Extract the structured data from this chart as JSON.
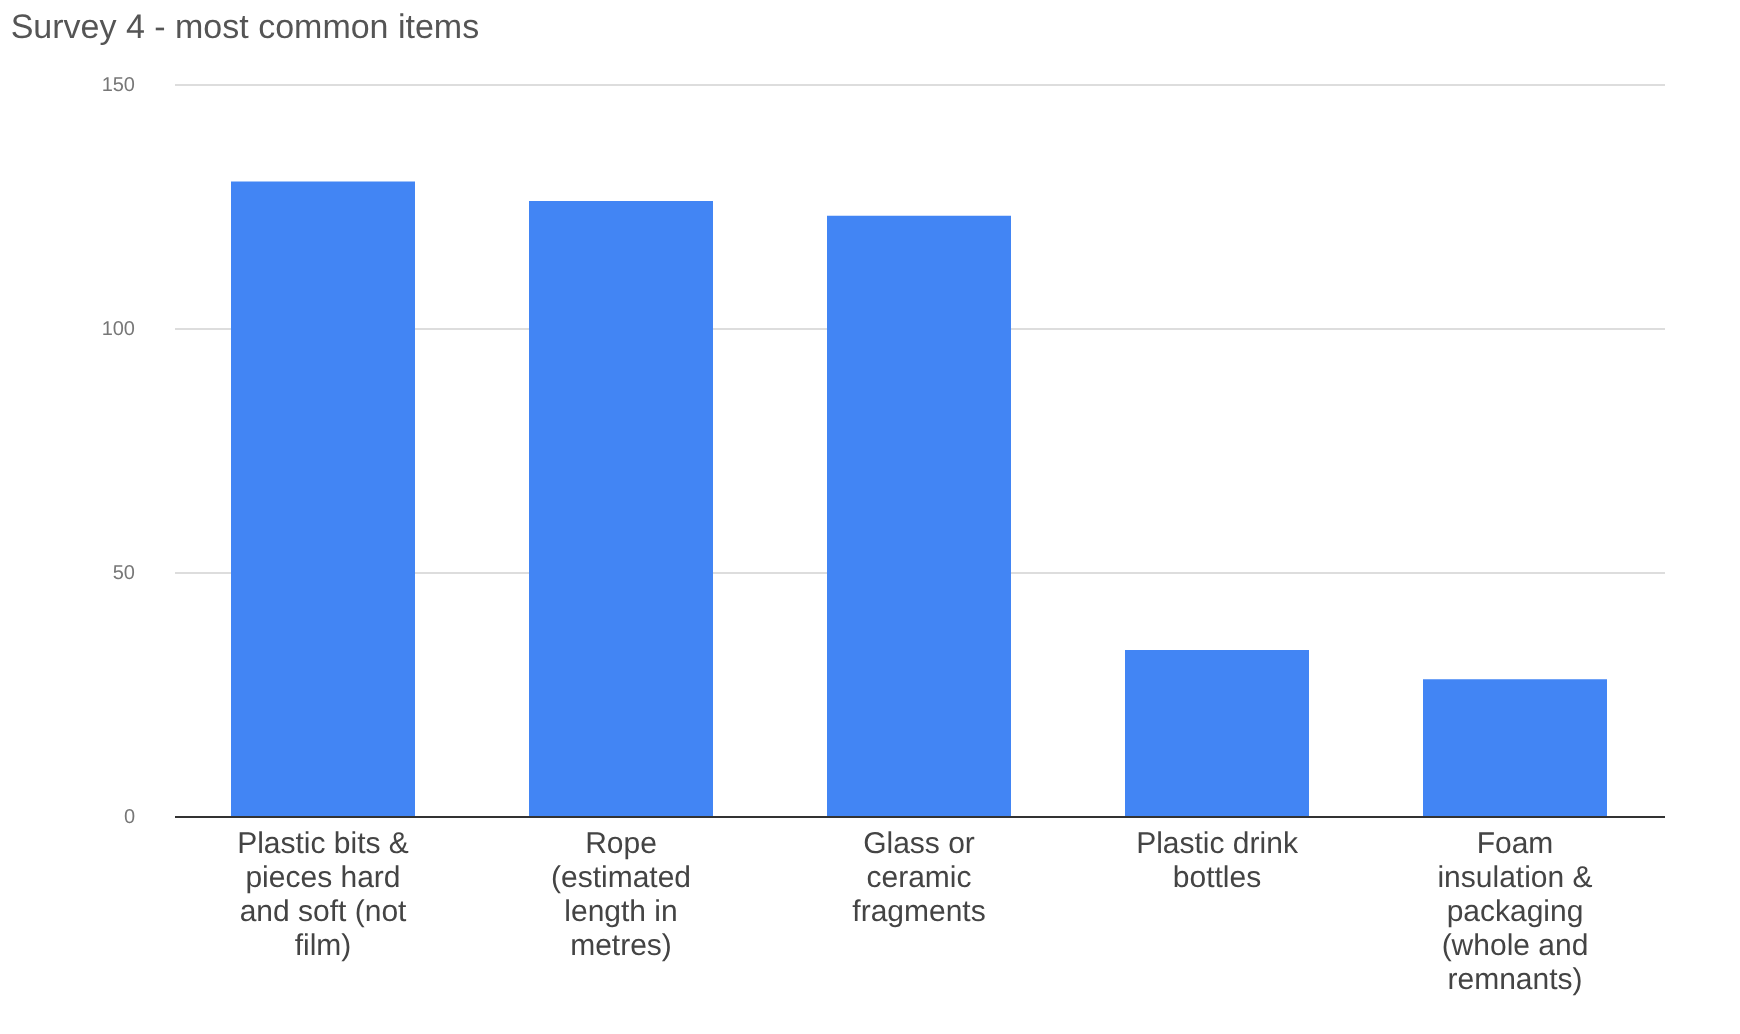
{
  "chart_data": {
    "type": "bar",
    "title": "Survey 4 - most common items",
    "categories": [
      "Plastic bits & pieces hard and soft (not film)",
      "Rope (estimated length in metres)",
      "Glass or ceramic fragments",
      "Plastic drink bottles",
      "Foam insulation & packaging (whole and remnants)"
    ],
    "values": [
      130,
      126,
      123,
      34,
      28
    ],
    "color": "#4285f4",
    "ylim": [
      0,
      150
    ],
    "yticks": [
      0,
      50,
      100,
      150
    ],
    "grid": "y"
  }
}
